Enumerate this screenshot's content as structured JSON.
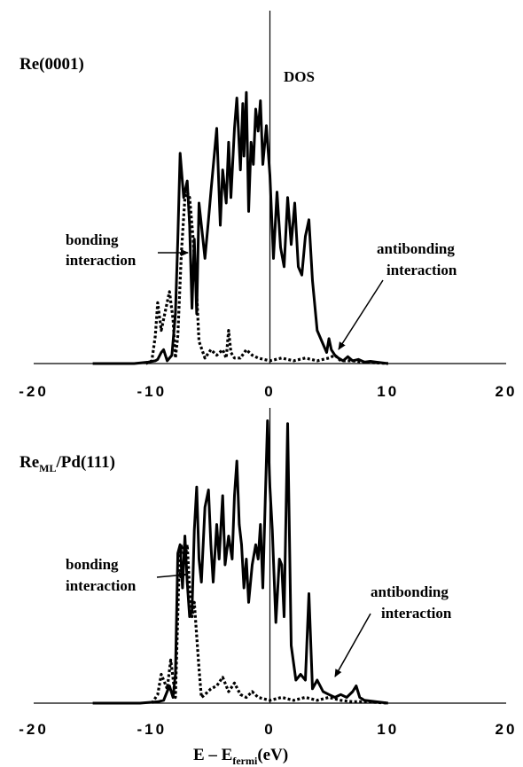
{
  "chart_data": [
    {
      "type": "line",
      "title": "Re(0001)",
      "ylabel": "DOS",
      "xlabel": "",
      "xlim": [
        -20,
        20
      ],
      "xticks": [
        "-20",
        "-10",
        "0",
        "10",
        "20"
      ],
      "grid": false,
      "annotations": {
        "bonding": [
          "bonding",
          "interaction"
        ],
        "antibonding": [
          "antibonding",
          "interaction"
        ]
      },
      "series": [
        {
          "style": "solid",
          "x": [
            -15,
            -11.5,
            -10.3,
            -9.7,
            -9.5,
            -9.2,
            -9.0,
            -8.7,
            -8.3,
            -8.0,
            -7.8,
            -7.6,
            -7.3,
            -7.0,
            -6.8,
            -6.6,
            -6.4,
            -6.2,
            -6.0,
            -5.8,
            -5.5,
            -5.2,
            -5.0,
            -4.7,
            -4.5,
            -4.2,
            -4.0,
            -3.7,
            -3.5,
            -3.3,
            -3.0,
            -2.8,
            -2.5,
            -2.3,
            -2.2,
            -2.0,
            -1.8,
            -1.6,
            -1.4,
            -1.2,
            -1.0,
            -0.8,
            -0.6,
            -0.3,
            0.0,
            0.3,
            0.6,
            0.9,
            1.2,
            1.5,
            1.8,
            2.1,
            2.4,
            2.7,
            3.0,
            3.3,
            3.6,
            4.0,
            4.4,
            4.8,
            5.0,
            5.2,
            5.5,
            5.8,
            6.2,
            6.6,
            7.0,
            7.5,
            8.0,
            8.5,
            9.0,
            10.0
          ],
          "y": [
            0,
            0,
            0.005,
            0.01,
            0.015,
            0.04,
            0.05,
            0.01,
            0.03,
            0.18,
            0.45,
            0.76,
            0.6,
            0.66,
            0.5,
            0.2,
            0.45,
            0.18,
            0.58,
            0.5,
            0.38,
            0.52,
            0.62,
            0.76,
            0.85,
            0.5,
            0.7,
            0.58,
            0.8,
            0.6,
            0.85,
            0.96,
            0.7,
            0.94,
            0.75,
            0.98,
            0.55,
            0.8,
            0.72,
            0.92,
            0.84,
            0.95,
            0.72,
            0.86,
            0.68,
            0.38,
            0.62,
            0.42,
            0.35,
            0.6,
            0.43,
            0.58,
            0.35,
            0.32,
            0.46,
            0.52,
            0.3,
            0.12,
            0.08,
            0.04,
            0.09,
            0.05,
            0.03,
            0.02,
            0.01,
            0.025,
            0.01,
            0.015,
            0.005,
            0.008,
            0.005,
            0
          ]
        },
        {
          "style": "dotted",
          "x": [
            -10.5,
            -10.0,
            -9.7,
            -9.5,
            -9.2,
            -8.8,
            -8.5,
            -8.2,
            -8.0,
            -7.8,
            -7.5,
            -7.2,
            -7.0,
            -6.8,
            -6.5,
            -6.2,
            -6.0,
            -5.5,
            -5.0,
            -4.5,
            -4.0,
            -3.7,
            -3.5,
            -3.3,
            -3.0,
            -2.5,
            -2.0,
            -1.5,
            -1.0,
            0.0,
            1.0,
            2.0,
            3.0,
            4.0,
            5.0,
            5.5,
            6.0,
            7.0,
            8.0,
            10.0
          ],
          "y": [
            0,
            0.01,
            0.1,
            0.22,
            0.12,
            0.2,
            0.26,
            0.16,
            0.02,
            0.1,
            0.4,
            0.6,
            0.62,
            0.6,
            0.45,
            0.25,
            0.08,
            0.02,
            0.05,
            0.03,
            0.05,
            0.02,
            0.12,
            0.04,
            0.02,
            0.02,
            0.05,
            0.03,
            0.02,
            0.01,
            0.02,
            0.01,
            0.02,
            0.01,
            0.02,
            0.03,
            0.01,
            0.01,
            0.005,
            0
          ]
        }
      ]
    },
    {
      "type": "line",
      "title": "Re",
      "title_subscript": "ML",
      "title_suffix": "/Pd(111)",
      "xlabel": "E – E",
      "xlabel_subscript": "fermi",
      "xlabel_suffix": "(eV)",
      "xlim": [
        -20,
        20
      ],
      "xticks": [
        "-20",
        "-10",
        "0",
        "10",
        "20"
      ],
      "grid": false,
      "annotations": {
        "bonding": [
          "bonding",
          "interaction"
        ],
        "antibonding": [
          "antibonding",
          "interaction"
        ]
      },
      "series": [
        {
          "style": "solid",
          "x": [
            -15,
            -11.0,
            -9.5,
            -9.0,
            -8.8,
            -8.5,
            -8.2,
            -8.0,
            -7.8,
            -7.6,
            -7.4,
            -7.2,
            -7.0,
            -6.8,
            -6.6,
            -6.4,
            -6.2,
            -6.0,
            -5.8,
            -5.5,
            -5.2,
            -5.0,
            -4.8,
            -4.5,
            -4.3,
            -4.0,
            -3.8,
            -3.5,
            -3.2,
            -3.0,
            -2.8,
            -2.6,
            -2.4,
            -2.2,
            -2.0,
            -1.8,
            -1.5,
            -1.2,
            -1.0,
            -0.8,
            -0.6,
            -0.4,
            -0.2,
            0.0,
            0.2,
            0.5,
            0.8,
            1.0,
            1.2,
            1.5,
            1.8,
            2.2,
            2.6,
            3.0,
            3.3,
            3.6,
            4.0,
            4.5,
            5.0,
            5.5,
            6.0,
            6.5,
            7.0,
            7.3,
            7.6,
            8.0,
            9.0,
            10.0
          ],
          "y": [
            0,
            0,
            0.005,
            0.01,
            0.03,
            0.06,
            0.02,
            0.1,
            0.52,
            0.55,
            0.4,
            0.58,
            0.42,
            0.3,
            0.32,
            0.6,
            0.75,
            0.5,
            0.42,
            0.68,
            0.74,
            0.55,
            0.42,
            0.62,
            0.5,
            0.72,
            0.48,
            0.58,
            0.5,
            0.72,
            0.84,
            0.62,
            0.55,
            0.4,
            0.5,
            0.35,
            0.48,
            0.55,
            0.5,
            0.62,
            0.4,
            0.7,
            0.98,
            0.75,
            0.6,
            0.28,
            0.5,
            0.48,
            0.3,
            0.97,
            0.2,
            0.08,
            0.1,
            0.08,
            0.38,
            0.05,
            0.08,
            0.04,
            0.03,
            0.02,
            0.03,
            0.02,
            0.04,
            0.06,
            0.02,
            0.01,
            0.005,
            0
          ]
        },
        {
          "style": "dotted",
          "x": [
            -10.0,
            -9.5,
            -9.2,
            -9.0,
            -8.7,
            -8.4,
            -8.0,
            -7.7,
            -7.5,
            -7.2,
            -7.0,
            -6.8,
            -6.6,
            -6.4,
            -6.0,
            -5.8,
            -5.5,
            -5.0,
            -4.5,
            -4.0,
            -3.5,
            -3.0,
            -2.5,
            -2.0,
            -1.5,
            -1.0,
            0.0,
            1.0,
            2.0,
            3.0,
            4.0,
            5.0,
            6.0,
            7.0,
            8.0,
            10.0
          ],
          "y": [
            0,
            0.03,
            0.1,
            0.08,
            0.05,
            0.15,
            0.02,
            0.45,
            0.55,
            0.5,
            0.55,
            0.4,
            0.3,
            0.35,
            0.12,
            0.02,
            0.03,
            0.05,
            0.06,
            0.09,
            0.04,
            0.07,
            0.03,
            0.02,
            0.04,
            0.02,
            0.01,
            0.02,
            0.01,
            0.02,
            0.01,
            0.02,
            0.01,
            0.005,
            0.005,
            0
          ]
        }
      ]
    }
  ]
}
